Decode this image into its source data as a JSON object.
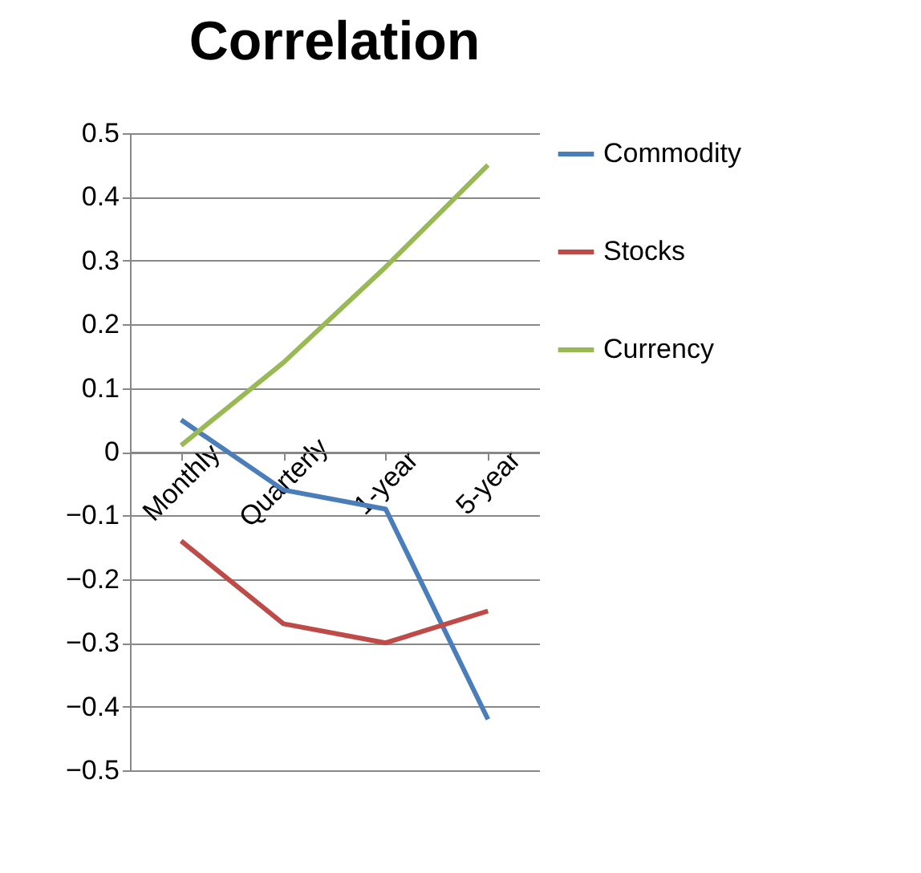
{
  "chart_data": {
    "type": "line",
    "title": "Correlation",
    "categories": [
      "Monthly",
      "Quarterly",
      "1-year",
      "5-year"
    ],
    "series": [
      {
        "name": "Commodity",
        "color": "#4a7ebb",
        "values": [
          0.05,
          -0.06,
          -0.09,
          -0.42
        ]
      },
      {
        "name": "Stocks",
        "color": "#be4b48",
        "values": [
          -0.14,
          -0.27,
          -0.3,
          -0.25
        ]
      },
      {
        "name": "Currency",
        "color": "#98b954",
        "values": [
          0.01,
          0.14,
          0.29,
          0.45
        ]
      }
    ],
    "ylim": [
      -0.5,
      0.5
    ],
    "yticks": [
      -0.5,
      -0.4,
      -0.3,
      -0.2,
      -0.1,
      0,
      0.1,
      0.2,
      0.3,
      0.4,
      0.5
    ],
    "grid": "y",
    "legend": "right",
    "marker": "none",
    "line_style": "solid"
  }
}
